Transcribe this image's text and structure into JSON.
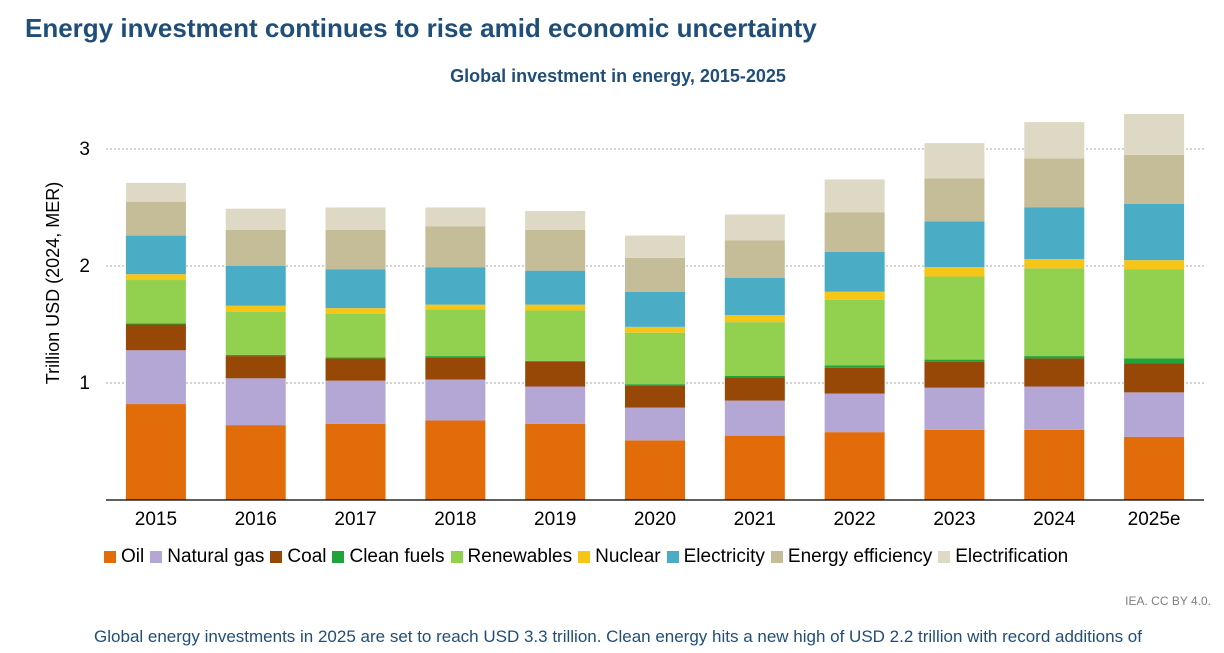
{
  "headline": "Energy investment continues to rise amid economic uncertainty",
  "source": "IEA. CC BY 4.0.",
  "caption": "Global energy investments in 2025 are set to reach USD 3.3 trillion. Clean energy hits a new high of USD 2.2 trillion with record additions of",
  "chart_data": {
    "type": "bar",
    "stacked": true,
    "title": "Global investment in energy, 2015-2025",
    "ylabel": "Trillion USD (2024, MER)",
    "xlabel": "",
    "ylim": [
      0,
      3.3
    ],
    "yticks": [
      "1",
      "2",
      "3"
    ],
    "grid": true,
    "legend_position": "bottom",
    "categories": [
      "2015",
      "2016",
      "2017",
      "2018",
      "2019",
      "2020",
      "2021",
      "2022",
      "2023",
      "2024",
      "2025e"
    ],
    "series": [
      {
        "name": "Oil",
        "color": "#e36c0a",
        "values": [
          0.82,
          0.64,
          0.65,
          0.68,
          0.65,
          0.51,
          0.55,
          0.58,
          0.6,
          0.6,
          0.54
        ]
      },
      {
        "name": "Natural gas",
        "color": "#b4a7d6",
        "values": [
          0.46,
          0.4,
          0.37,
          0.35,
          0.32,
          0.28,
          0.3,
          0.33,
          0.36,
          0.37,
          0.38
        ]
      },
      {
        "name": "Coal",
        "color": "#974706",
        "values": [
          0.22,
          0.19,
          0.19,
          0.19,
          0.21,
          0.19,
          0.2,
          0.22,
          0.22,
          0.24,
          0.25
        ]
      },
      {
        "name": "Clean fuels",
        "color": "#1fa33a",
        "values": [
          0.01,
          0.01,
          0.01,
          0.01,
          0.01,
          0.01,
          0.01,
          0.02,
          0.02,
          0.02,
          0.04
        ]
      },
      {
        "name": "Renewables",
        "color": "#92d050",
        "values": [
          0.37,
          0.37,
          0.37,
          0.4,
          0.43,
          0.44,
          0.46,
          0.56,
          0.71,
          0.75,
          0.76
        ]
      },
      {
        "name": "Nuclear",
        "color": "#f5c518",
        "values": [
          0.05,
          0.05,
          0.05,
          0.04,
          0.05,
          0.05,
          0.06,
          0.07,
          0.08,
          0.08,
          0.08
        ]
      },
      {
        "name": "Electricity",
        "color": "#4bacc6",
        "values": [
          0.33,
          0.34,
          0.33,
          0.32,
          0.29,
          0.3,
          0.32,
          0.34,
          0.39,
          0.44,
          0.48
        ]
      },
      {
        "name": "Energy efficiency",
        "color": "#c4bd97",
        "values": [
          0.29,
          0.31,
          0.34,
          0.35,
          0.35,
          0.29,
          0.32,
          0.34,
          0.37,
          0.42,
          0.42
        ]
      },
      {
        "name": "Electrification",
        "color": "#ddd9c4",
        "values": [
          0.16,
          0.18,
          0.19,
          0.16,
          0.16,
          0.19,
          0.22,
          0.28,
          0.3,
          0.31,
          0.35
        ]
      }
    ]
  }
}
